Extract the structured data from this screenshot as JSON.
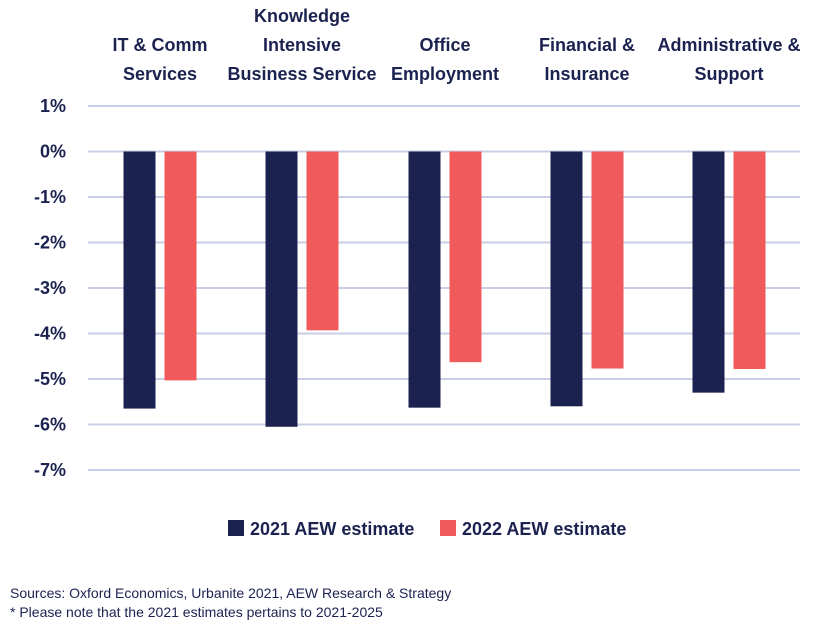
{
  "chart_data": {
    "type": "bar",
    "categories": [
      [
        "IT & Comm",
        "Services"
      ],
      [
        "Knowledge",
        "Intensive",
        "Business Service"
      ],
      [
        "Office",
        "Employment"
      ],
      [
        "Financial &",
        "Insurance"
      ],
      [
        "Administrative &",
        "Support"
      ]
    ],
    "series": [
      {
        "name": "2021 AEW estimate",
        "values": [
          -5.65,
          -6.05,
          -5.63,
          -5.6,
          -5.3
        ],
        "color": "#1b2250"
      },
      {
        "name": "2022 AEW estimate",
        "values": [
          -5.03,
          -3.93,
          -4.63,
          -4.77,
          -4.78
        ],
        "color": "#f05a5b"
      }
    ],
    "ylim": [
      -7,
      1
    ],
    "yticks": [
      1,
      0,
      -1,
      -2,
      -3,
      -4,
      -5,
      -6,
      -7
    ],
    "ytick_labels": [
      "1%",
      "0%",
      "-1%",
      "-2%",
      "-3%",
      "-4%",
      "-5%",
      "-6%",
      "-7%"
    ],
    "grid": true,
    "legend_position": "bottom",
    "title": "",
    "xlabel": "",
    "ylabel": "",
    "gridline_color": "#c9cde6"
  },
  "footnotes": {
    "sources": "Sources: Oxford Economics, Urbanite 2021, AEW Research & Strategy",
    "note": "* Please note that the 2021 estimates pertains to 2021-2025"
  }
}
